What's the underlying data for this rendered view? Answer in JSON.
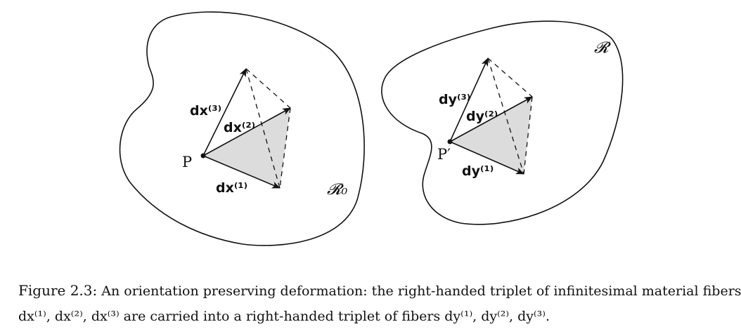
{
  "figure": {
    "left": {
      "region_label": "𝓡₀",
      "point_label": "P",
      "fiber_labels": [
        "dx⁽¹⁾",
        "dx⁽²⁾",
        "dx⁽³⁾"
      ]
    },
    "right": {
      "region_label": "𝓡",
      "point_label": "P′",
      "fiber_labels": [
        "dy⁽¹⁾",
        "dy⁽²⁾",
        "dy⁽³⁾"
      ]
    }
  },
  "caption": {
    "lead": "Figure 2.3:",
    "line1": "An orientation preserving deformation: the right-handed triplet of infinitesimal material fibers",
    "line2": "dx⁽¹⁾, dx⁽²⁾, dx⁽³⁾ are carried into a right-handed triplet of fibers dy⁽¹⁾, dy⁽²⁾, dy⁽³⁾."
  },
  "colors": {
    "ink": "#111111",
    "shade": "#dcdcdc",
    "background": "#ffffff"
  }
}
